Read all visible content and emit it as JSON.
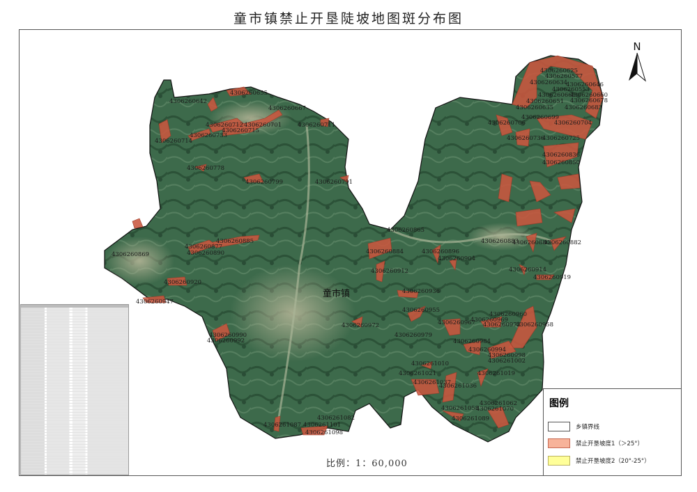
{
  "title": "童市镇禁止开垦陡坡地图斑分布图",
  "town_name": "童市镇",
  "north_label": "N",
  "scale": "比例：1：60,000",
  "legend": {
    "title": "图例",
    "items": [
      {
        "label": "乡镇界线",
        "color": "#ffffff"
      },
      {
        "label": "禁止开垦坡度1（＞25°）",
        "color": "#f7b39a"
      },
      {
        "label": "禁止开垦坡度2（20°-25°）",
        "color": "#ffff99"
      }
    ]
  },
  "colors": {
    "patch": "#c9573f",
    "imagery": "#3f6a4c",
    "boundary": "#111111"
  },
  "patches": [
    "4306260642",
    "4306260655",
    "4306260667",
    "4306260712",
    "4306260701",
    "4306260715",
    "4306260711",
    "4306260733",
    "4306260714",
    "4306260778",
    "4306260799",
    "4306260791",
    "4306260625",
    "4306260577",
    "4306260634",
    "4306260646",
    "4306260553",
    "4306260660",
    "4306260666",
    "4306260651",
    "4306260678",
    "4306260635",
    "4306260683",
    "4306260699",
    "4306260706",
    "4306260704",
    "4306260736",
    "4306260725",
    "4306260836",
    "4306260850",
    "4306260865",
    "4306260883",
    "4306260880",
    "4306260882",
    "4306260884",
    "4306260896",
    "4306260904",
    "4306260912",
    "4306260914",
    "4306260919",
    "4306260936",
    "4306260955",
    "4306260960",
    "4306260969",
    "4306260967",
    "4306260973",
    "4306260958",
    "4306260972",
    "4306260979",
    "4306260984",
    "4306260994",
    "4306260998",
    "4306261002",
    "4306261010",
    "4306261021",
    "4306261037",
    "4306261036",
    "4306261019",
    "4306261062",
    "4306261058",
    "4306261070",
    "4306261089",
    "4306261087",
    "4306261082",
    "4306261101",
    "4306261098",
    "4306260885",
    "4306260877",
    "4306260890",
    "4306260869",
    "4306260920",
    "4306260947",
    "4306260990",
    "4306260992"
  ]
}
